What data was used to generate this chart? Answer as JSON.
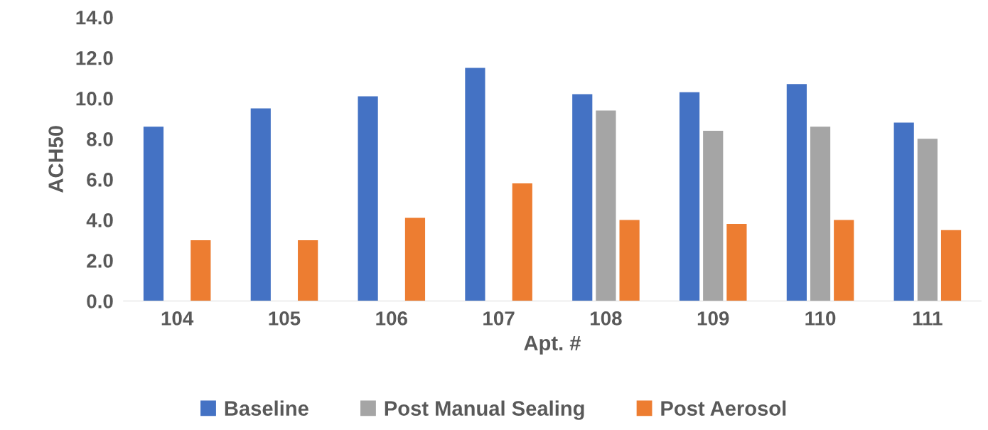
{
  "chart_data": {
    "type": "bar",
    "xlabel": "Apt. #",
    "ylabel": "ACH50",
    "categories": [
      "104",
      "105",
      "106",
      "107",
      "108",
      "109",
      "110",
      "111"
    ],
    "series": [
      {
        "name": "Baseline",
        "color": "#4472c4",
        "values": [
          8.6,
          9.5,
          10.1,
          11.5,
          10.2,
          10.3,
          10.7,
          8.8
        ]
      },
      {
        "name": "Post Manual Sealing",
        "color": "#a5a5a5",
        "values": [
          null,
          null,
          null,
          null,
          9.4,
          8.4,
          8.6,
          8.0
        ]
      },
      {
        "name": "Post Aerosol",
        "color": "#ed7d31",
        "values": [
          3.0,
          3.0,
          4.1,
          5.8,
          4.0,
          3.8,
          4.0,
          3.5
        ]
      }
    ],
    "ylim": [
      0,
      14
    ],
    "yticks": [
      {
        "value": 0,
        "label": "0.0"
      },
      {
        "value": 2,
        "label": "2.0"
      },
      {
        "value": 4,
        "label": "4.0"
      },
      {
        "value": 6,
        "label": "6.0"
      },
      {
        "value": 8,
        "label": "8.0"
      },
      {
        "value": 10,
        "label": "10.0"
      },
      {
        "value": 12,
        "label": "12.0"
      },
      {
        "value": 14,
        "label": "14.0"
      }
    ],
    "grid": false,
    "legend": "bottom"
  }
}
